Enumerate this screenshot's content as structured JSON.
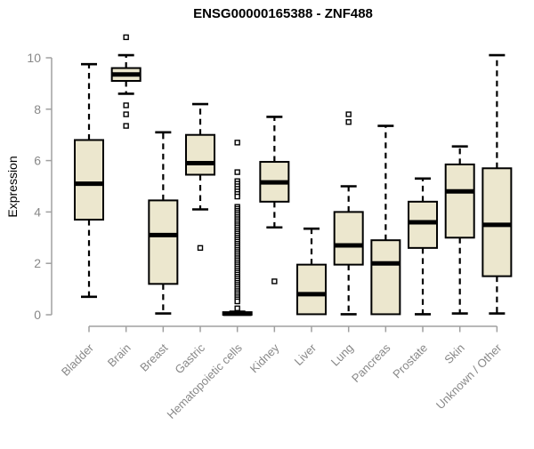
{
  "title": "ENSG00000165388 - ZNF488",
  "colors": {
    "box_fill": "#ECE7CE",
    "box_border": "#000000",
    "median": "#000000",
    "whisker": "#000000",
    "outlier_fill": "#ffffff",
    "outlier_border": "#000000",
    "axis_line": "#a0a0a0",
    "axis_text": "#888888",
    "background": "#ffffff",
    "title_text": "#000000"
  },
  "chart_data": {
    "type": "boxplot",
    "title": "ENSG00000165388 - ZNF488",
    "xlabel": "",
    "ylabel": "Expression",
    "ylim": [
      0,
      10
    ],
    "yticks": [
      0,
      2,
      4,
      6,
      8,
      10
    ],
    "grid": false,
    "legend": false,
    "categories": [
      "Bladder",
      "Brain",
      "Breast",
      "Gastric",
      "Hematopoietic cells",
      "Kidney",
      "Liver",
      "Lung",
      "Pancreas",
      "Prostate",
      "Skin",
      "Unknown / Other"
    ],
    "series": [
      {
        "name": "Bladder",
        "whislo": 0.7,
        "q1": 3.7,
        "med": 5.1,
        "q3": 6.8,
        "whishi": 9.75,
        "outliers": []
      },
      {
        "name": "Brain",
        "whislo": 8.6,
        "q1": 9.1,
        "med": 9.35,
        "q3": 9.6,
        "whishi": 10.1,
        "outliers": [
          10.8,
          8.15,
          7.8,
          7.35
        ]
      },
      {
        "name": "Breast",
        "whislo": 0.05,
        "q1": 1.2,
        "med": 3.1,
        "q3": 4.45,
        "whishi": 7.1,
        "outliers": []
      },
      {
        "name": "Gastric",
        "whislo": 4.1,
        "q1": 5.45,
        "med": 5.9,
        "q3": 7.0,
        "whishi": 8.2,
        "outliers": [
          2.6
        ]
      },
      {
        "name": "Hematopoietic cells",
        "whislo": 0.0,
        "q1": 0.0,
        "med": 0.04,
        "q3": 0.1,
        "whishi": 0.12,
        "outliers": [
          6.7,
          5.55,
          5.2,
          5.1,
          5.0,
          4.9,
          4.8,
          4.7,
          4.6,
          4.2,
          4.12,
          4.04,
          3.96,
          3.88,
          3.8,
          3.72,
          3.64,
          3.56,
          3.48,
          3.4,
          3.32,
          3.24,
          3.16,
          3.08,
          3.0,
          2.92,
          2.84,
          2.76,
          2.68,
          2.6,
          2.52,
          2.44,
          2.36,
          2.28,
          2.2,
          2.12,
          2.04,
          1.96,
          1.88,
          1.8,
          1.72,
          1.64,
          1.56,
          1.48,
          1.4,
          1.32,
          1.24,
          1.16,
          1.08,
          1.0,
          0.92,
          0.84,
          0.76,
          0.68,
          0.6,
          0.52,
          0.25
        ]
      },
      {
        "name": "Kidney",
        "whislo": 3.4,
        "q1": 4.4,
        "med": 5.15,
        "q3": 5.95,
        "whishi": 7.7,
        "outliers": [
          1.3
        ]
      },
      {
        "name": "Liver",
        "whislo": 0.02,
        "q1": 0.02,
        "med": 0.8,
        "q3": 1.95,
        "whishi": 3.35,
        "outliers": []
      },
      {
        "name": "Lung",
        "whislo": 0.02,
        "q1": 1.95,
        "med": 2.7,
        "q3": 4.0,
        "whishi": 5.0,
        "outliers": [
          7.8,
          7.5
        ]
      },
      {
        "name": "Pancreas",
        "whislo": 0.02,
        "q1": 0.02,
        "med": 2.0,
        "q3": 2.9,
        "whishi": 7.35,
        "outliers": []
      },
      {
        "name": "Prostate",
        "whislo": 0.02,
        "q1": 2.6,
        "med": 3.6,
        "q3": 4.4,
        "whishi": 5.3,
        "outliers": []
      },
      {
        "name": "Skin",
        "whislo": 0.05,
        "q1": 3.0,
        "med": 4.8,
        "q3": 5.85,
        "whishi": 6.55,
        "outliers": []
      },
      {
        "name": "Unknown / Other",
        "whislo": 0.05,
        "q1": 1.5,
        "med": 3.5,
        "q3": 5.7,
        "whishi": 10.1,
        "outliers": []
      }
    ]
  }
}
